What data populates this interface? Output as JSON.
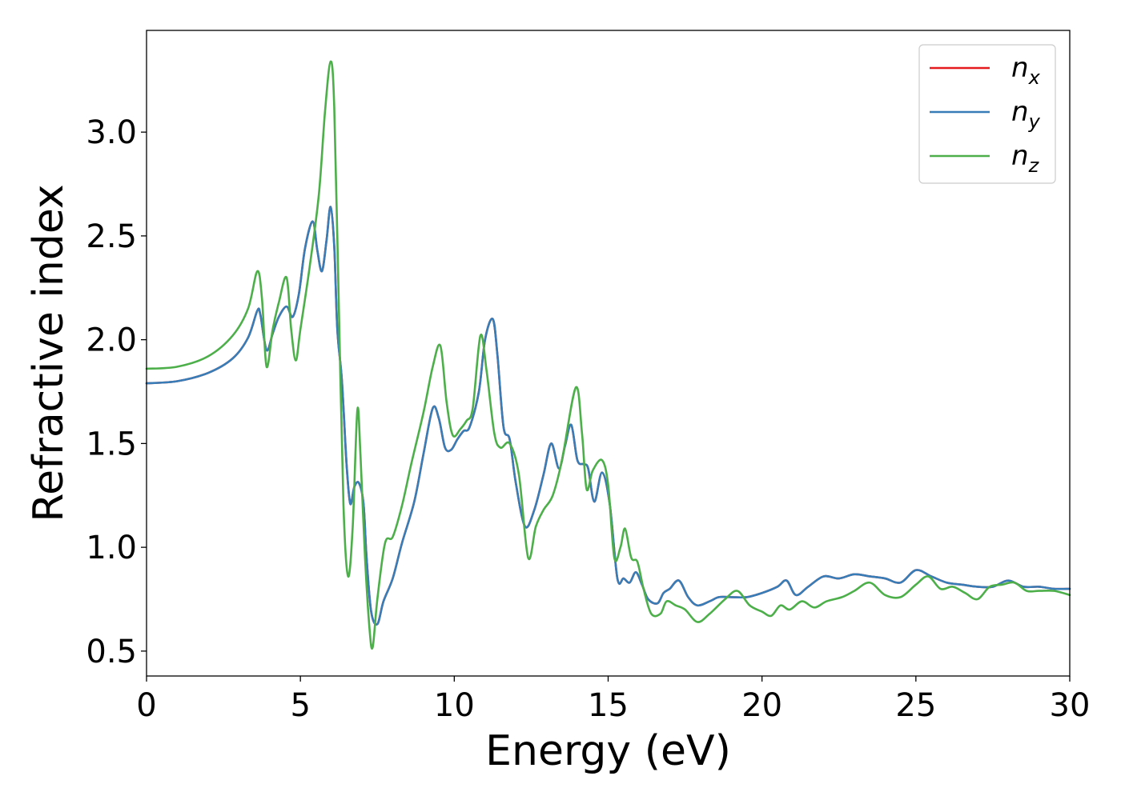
{
  "chart_data": {
    "type": "line",
    "xlabel": "Energy (eV)",
    "ylabel": "Refractive index",
    "xlim": [
      0,
      30
    ],
    "ylim": [
      0.38,
      3.49
    ],
    "xticks": [
      0,
      5,
      10,
      15,
      20,
      25,
      30
    ],
    "xtick_labels": [
      "0",
      "5",
      "10",
      "15",
      "20",
      "25",
      "30"
    ],
    "yticks": [
      0.5,
      1.0,
      1.5,
      2.0,
      2.5,
      3.0
    ],
    "ytick_labels": [
      "0.5",
      "1.0",
      "1.5",
      "2.0",
      "2.5",
      "3.0"
    ],
    "grid": false,
    "legend_position": "top-right",
    "series": [
      {
        "name": "n_x",
        "label_base": "n",
        "label_sub": "x",
        "color": "#e41a1c",
        "points": [
          [
            0,
            1.79
          ],
          [
            1,
            1.8
          ],
          [
            2,
            1.84
          ],
          [
            2.8,
            1.91
          ],
          [
            3.3,
            2.01
          ],
          [
            3.6,
            2.14
          ],
          [
            3.7,
            2.12
          ],
          [
            3.9,
            1.95
          ],
          [
            4.1,
            2.03
          ],
          [
            4.3,
            2.11
          ],
          [
            4.55,
            2.16
          ],
          [
            4.75,
            2.11
          ],
          [
            4.95,
            2.22
          ],
          [
            5.15,
            2.44
          ],
          [
            5.4,
            2.57
          ],
          [
            5.55,
            2.43
          ],
          [
            5.7,
            2.33
          ],
          [
            5.85,
            2.48
          ],
          [
            5.98,
            2.64
          ],
          [
            6.1,
            2.45
          ],
          [
            6.2,
            2.05
          ],
          [
            6.35,
            1.8
          ],
          [
            6.5,
            1.4
          ],
          [
            6.62,
            1.21
          ],
          [
            6.75,
            1.29
          ],
          [
            6.9,
            1.31
          ],
          [
            7.05,
            1.21
          ],
          [
            7.15,
            0.95
          ],
          [
            7.3,
            0.69
          ],
          [
            7.5,
            0.63
          ],
          [
            7.7,
            0.74
          ],
          [
            8.0,
            0.85
          ],
          [
            8.3,
            1.02
          ],
          [
            8.7,
            1.22
          ],
          [
            9.0,
            1.45
          ],
          [
            9.3,
            1.67
          ],
          [
            9.5,
            1.62
          ],
          [
            9.7,
            1.48
          ],
          [
            9.9,
            1.47
          ],
          [
            10.1,
            1.52
          ],
          [
            10.3,
            1.56
          ],
          [
            10.5,
            1.58
          ],
          [
            10.8,
            1.75
          ],
          [
            11.0,
            2.0
          ],
          [
            11.25,
            2.1
          ],
          [
            11.4,
            1.93
          ],
          [
            11.6,
            1.58
          ],
          [
            11.8,
            1.52
          ],
          [
            12.0,
            1.31
          ],
          [
            12.3,
            1.1
          ],
          [
            12.6,
            1.18
          ],
          [
            12.9,
            1.35
          ],
          [
            13.15,
            1.5
          ],
          [
            13.4,
            1.38
          ],
          [
            13.6,
            1.49
          ],
          [
            13.8,
            1.59
          ],
          [
            14.0,
            1.42
          ],
          [
            14.2,
            1.4
          ],
          [
            14.35,
            1.38
          ],
          [
            14.55,
            1.22
          ],
          [
            14.8,
            1.36
          ],
          [
            15.05,
            1.21
          ],
          [
            15.3,
            0.85
          ],
          [
            15.5,
            0.85
          ],
          [
            15.7,
            0.83
          ],
          [
            15.9,
            0.88
          ],
          [
            16.1,
            0.82
          ],
          [
            16.3,
            0.75
          ],
          [
            16.6,
            0.73
          ],
          [
            16.8,
            0.78
          ],
          [
            17.0,
            0.8
          ],
          [
            17.3,
            0.84
          ],
          [
            17.6,
            0.76
          ],
          [
            17.9,
            0.72
          ],
          [
            18.3,
            0.74
          ],
          [
            18.6,
            0.76
          ],
          [
            19.0,
            0.76
          ],
          [
            19.5,
            0.76
          ],
          [
            20.0,
            0.78
          ],
          [
            20.5,
            0.81
          ],
          [
            20.8,
            0.84
          ],
          [
            21.1,
            0.77
          ],
          [
            21.5,
            0.81
          ],
          [
            22.0,
            0.86
          ],
          [
            22.5,
            0.85
          ],
          [
            23.0,
            0.87
          ],
          [
            23.5,
            0.86
          ],
          [
            24.0,
            0.85
          ],
          [
            24.5,
            0.83
          ],
          [
            25.0,
            0.89
          ],
          [
            25.5,
            0.86
          ],
          [
            26.0,
            0.83
          ],
          [
            26.5,
            0.82
          ],
          [
            27.0,
            0.81
          ],
          [
            27.5,
            0.81
          ],
          [
            28.0,
            0.84
          ],
          [
            28.5,
            0.81
          ],
          [
            29.0,
            0.81
          ],
          [
            29.5,
            0.8
          ],
          [
            30.0,
            0.8
          ]
        ]
      },
      {
        "name": "n_y",
        "label_base": "n",
        "label_sub": "y",
        "color": "#377eb8",
        "points": [
          [
            0,
            1.79
          ],
          [
            1,
            1.8
          ],
          [
            2,
            1.84
          ],
          [
            2.8,
            1.91
          ],
          [
            3.3,
            2.01
          ],
          [
            3.6,
            2.14
          ],
          [
            3.7,
            2.12
          ],
          [
            3.9,
            1.95
          ],
          [
            4.1,
            2.03
          ],
          [
            4.3,
            2.11
          ],
          [
            4.55,
            2.16
          ],
          [
            4.75,
            2.11
          ],
          [
            4.95,
            2.22
          ],
          [
            5.15,
            2.44
          ],
          [
            5.4,
            2.57
          ],
          [
            5.55,
            2.43
          ],
          [
            5.7,
            2.33
          ],
          [
            5.85,
            2.48
          ],
          [
            5.98,
            2.64
          ],
          [
            6.1,
            2.45
          ],
          [
            6.2,
            2.05
          ],
          [
            6.35,
            1.8
          ],
          [
            6.5,
            1.4
          ],
          [
            6.62,
            1.21
          ],
          [
            6.75,
            1.29
          ],
          [
            6.9,
            1.31
          ],
          [
            7.05,
            1.21
          ],
          [
            7.15,
            0.95
          ],
          [
            7.3,
            0.69
          ],
          [
            7.5,
            0.63
          ],
          [
            7.7,
            0.74
          ],
          [
            8.0,
            0.85
          ],
          [
            8.3,
            1.02
          ],
          [
            8.7,
            1.22
          ],
          [
            9.0,
            1.45
          ],
          [
            9.3,
            1.67
          ],
          [
            9.5,
            1.62
          ],
          [
            9.7,
            1.48
          ],
          [
            9.9,
            1.47
          ],
          [
            10.1,
            1.52
          ],
          [
            10.3,
            1.56
          ],
          [
            10.5,
            1.58
          ],
          [
            10.8,
            1.75
          ],
          [
            11.0,
            2.0
          ],
          [
            11.25,
            2.1
          ],
          [
            11.4,
            1.93
          ],
          [
            11.6,
            1.58
          ],
          [
            11.8,
            1.52
          ],
          [
            12.0,
            1.31
          ],
          [
            12.3,
            1.1
          ],
          [
            12.6,
            1.18
          ],
          [
            12.9,
            1.35
          ],
          [
            13.15,
            1.5
          ],
          [
            13.4,
            1.38
          ],
          [
            13.6,
            1.49
          ],
          [
            13.8,
            1.59
          ],
          [
            14.0,
            1.42
          ],
          [
            14.2,
            1.4
          ],
          [
            14.35,
            1.38
          ],
          [
            14.55,
            1.22
          ],
          [
            14.8,
            1.36
          ],
          [
            15.05,
            1.21
          ],
          [
            15.3,
            0.85
          ],
          [
            15.5,
            0.85
          ],
          [
            15.7,
            0.83
          ],
          [
            15.9,
            0.88
          ],
          [
            16.1,
            0.82
          ],
          [
            16.3,
            0.75
          ],
          [
            16.6,
            0.73
          ],
          [
            16.8,
            0.78
          ],
          [
            17.0,
            0.8
          ],
          [
            17.3,
            0.84
          ],
          [
            17.6,
            0.76
          ],
          [
            17.9,
            0.72
          ],
          [
            18.3,
            0.74
          ],
          [
            18.6,
            0.76
          ],
          [
            19.0,
            0.76
          ],
          [
            19.5,
            0.76
          ],
          [
            20.0,
            0.78
          ],
          [
            20.5,
            0.81
          ],
          [
            20.8,
            0.84
          ],
          [
            21.1,
            0.77
          ],
          [
            21.5,
            0.81
          ],
          [
            22.0,
            0.86
          ],
          [
            22.5,
            0.85
          ],
          [
            23.0,
            0.87
          ],
          [
            23.5,
            0.86
          ],
          [
            24.0,
            0.85
          ],
          [
            24.5,
            0.83
          ],
          [
            25.0,
            0.89
          ],
          [
            25.5,
            0.86
          ],
          [
            26.0,
            0.83
          ],
          [
            26.5,
            0.82
          ],
          [
            27.0,
            0.81
          ],
          [
            27.5,
            0.81
          ],
          [
            28.0,
            0.84
          ],
          [
            28.5,
            0.81
          ],
          [
            29.0,
            0.81
          ],
          [
            29.5,
            0.8
          ],
          [
            30.0,
            0.8
          ]
        ]
      },
      {
        "name": "n_z",
        "label_base": "n",
        "label_sub": "z",
        "color": "#4daf4a",
        "points": [
          [
            0,
            1.86
          ],
          [
            1,
            1.87
          ],
          [
            2,
            1.92
          ],
          [
            2.8,
            2.02
          ],
          [
            3.3,
            2.15
          ],
          [
            3.6,
            2.33
          ],
          [
            3.75,
            2.2
          ],
          [
            3.9,
            1.87
          ],
          [
            4.1,
            2.05
          ],
          [
            4.3,
            2.18
          ],
          [
            4.55,
            2.3
          ],
          [
            4.7,
            2.05
          ],
          [
            4.85,
            1.9
          ],
          [
            5.0,
            2.05
          ],
          [
            5.3,
            2.35
          ],
          [
            5.6,
            2.7
          ],
          [
            5.8,
            3.1
          ],
          [
            5.98,
            3.34
          ],
          [
            6.1,
            3.12
          ],
          [
            6.25,
            2.15
          ],
          [
            6.4,
            1.2
          ],
          [
            6.55,
            0.86
          ],
          [
            6.7,
            1.1
          ],
          [
            6.85,
            1.66
          ],
          [
            6.95,
            1.45
          ],
          [
            7.1,
            0.95
          ],
          [
            7.25,
            0.6
          ],
          [
            7.35,
            0.52
          ],
          [
            7.5,
            0.75
          ],
          [
            7.75,
            1.02
          ],
          [
            8.0,
            1.05
          ],
          [
            8.3,
            1.2
          ],
          [
            8.6,
            1.4
          ],
          [
            9.0,
            1.65
          ],
          [
            9.3,
            1.87
          ],
          [
            9.55,
            1.97
          ],
          [
            9.75,
            1.7
          ],
          [
            9.95,
            1.54
          ],
          [
            10.2,
            1.57
          ],
          [
            10.4,
            1.61
          ],
          [
            10.6,
            1.67
          ],
          [
            10.85,
            2.02
          ],
          [
            11.05,
            1.85
          ],
          [
            11.3,
            1.55
          ],
          [
            11.5,
            1.48
          ],
          [
            11.8,
            1.5
          ],
          [
            12.1,
            1.35
          ],
          [
            12.4,
            0.95
          ],
          [
            12.65,
            1.1
          ],
          [
            12.9,
            1.18
          ],
          [
            13.2,
            1.25
          ],
          [
            13.5,
            1.42
          ],
          [
            13.95,
            1.77
          ],
          [
            14.15,
            1.55
          ],
          [
            14.3,
            1.28
          ],
          [
            14.5,
            1.37
          ],
          [
            14.8,
            1.42
          ],
          [
            15.0,
            1.3
          ],
          [
            15.2,
            0.95
          ],
          [
            15.4,
            1.0
          ],
          [
            15.55,
            1.09
          ],
          [
            15.75,
            0.95
          ],
          [
            15.95,
            0.93
          ],
          [
            16.15,
            0.8
          ],
          [
            16.4,
            0.68
          ],
          [
            16.7,
            0.68
          ],
          [
            16.9,
            0.74
          ],
          [
            17.2,
            0.72
          ],
          [
            17.5,
            0.7
          ],
          [
            17.9,
            0.64
          ],
          [
            18.3,
            0.68
          ],
          [
            18.8,
            0.75
          ],
          [
            19.2,
            0.79
          ],
          [
            19.6,
            0.72
          ],
          [
            20.0,
            0.69
          ],
          [
            20.3,
            0.67
          ],
          [
            20.6,
            0.72
          ],
          [
            20.9,
            0.7
          ],
          [
            21.3,
            0.74
          ],
          [
            21.7,
            0.71
          ],
          [
            22.1,
            0.74
          ],
          [
            22.6,
            0.76
          ],
          [
            23.0,
            0.79
          ],
          [
            23.5,
            0.83
          ],
          [
            24.0,
            0.77
          ],
          [
            24.5,
            0.76
          ],
          [
            25.0,
            0.82
          ],
          [
            25.4,
            0.86
          ],
          [
            25.8,
            0.8
          ],
          [
            26.2,
            0.81
          ],
          [
            26.6,
            0.78
          ],
          [
            27.0,
            0.75
          ],
          [
            27.4,
            0.81
          ],
          [
            27.8,
            0.82
          ],
          [
            28.2,
            0.83
          ],
          [
            28.6,
            0.79
          ],
          [
            29.0,
            0.79
          ],
          [
            29.5,
            0.79
          ],
          [
            30.0,
            0.77
          ]
        ]
      }
    ]
  }
}
